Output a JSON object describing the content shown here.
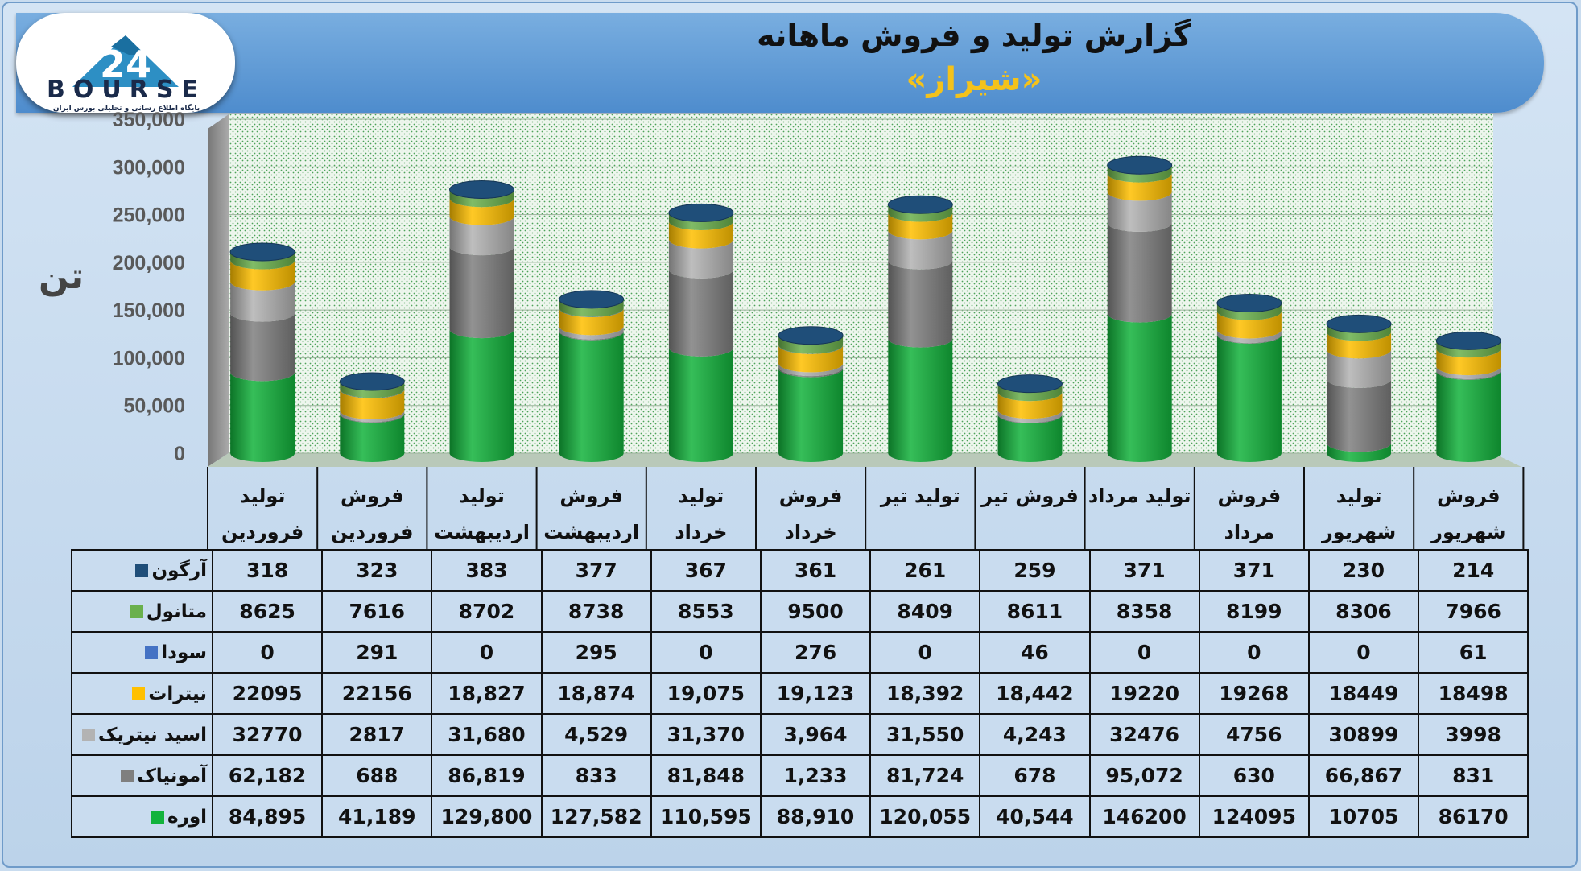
{
  "header": {
    "title": "گزارش تولید و فروش ماهانه",
    "subtitle": "«شیراز»"
  },
  "logo": {
    "text": "BOURSE",
    "mark": "24",
    "tagline": "پایگاه اطلاع رسانی و تحلیلی بورس ایران"
  },
  "axis": {
    "unit_label": "تن"
  },
  "colors": {
    "اوره": "#12b33c",
    "آمونیاک": "#7f7f7f",
    "اسید نیتریک": "#b3b3b3",
    "نیترات": "#ffc000",
    "سودا": "#4472c4",
    "متانول": "#6ab04c",
    "آرگون": "#1f4e79"
  },
  "chart_data": {
    "type": "bar",
    "stacked": true,
    "title": "گزارش تولید و فروش ماهانه",
    "subtitle": "«شیراز»",
    "ylabel": "تن",
    "ylim": [
      0,
      350000
    ],
    "yticks": [
      "0",
      "50,000",
      "100,000",
      "150,000",
      "200,000",
      "250,000",
      "300,000",
      "350,000"
    ],
    "grid": true,
    "categories": [
      [
        "تولید",
        "فروردین"
      ],
      [
        "فروش",
        "فروردین"
      ],
      [
        "تولید",
        "اردیبهشت"
      ],
      [
        "فروش",
        "اردیبهشت"
      ],
      [
        "تولید",
        "خرداد"
      ],
      [
        "فروش",
        "خرداد"
      ],
      [
        "تولید تیر",
        ""
      ],
      [
        "فروش تیر",
        ""
      ],
      [
        "تولید مرداد",
        ""
      ],
      [
        "فروش",
        "مرداد"
      ],
      [
        "تولید",
        "شهریور"
      ],
      [
        "فروش",
        "شهریور"
      ]
    ],
    "series": [
      {
        "name": "اوره",
        "values": [
          84895,
          41189,
          129800,
          127582,
          110595,
          88910,
          120055,
          40544,
          146200,
          124095,
          10705,
          86170
        ],
        "labels": [
          "84,895",
          "41,189",
          "129,800",
          "127,582",
          "110,595",
          "88,910",
          "120,055",
          "40,544",
          "146200",
          "124095",
          "10705",
          "86170"
        ]
      },
      {
        "name": "آمونیاک",
        "values": [
          62182,
          688,
          86819,
          833,
          81848,
          1233,
          81724,
          678,
          95072,
          630,
          66867,
          831
        ],
        "labels": [
          "62,182",
          "688",
          "86,819",
          "833",
          "81,848",
          "1,233",
          "81,724",
          "678",
          "95,072",
          "630",
          "66,867",
          "831"
        ]
      },
      {
        "name": "اسید نیتریک",
        "values": [
          32770,
          2817,
          31680,
          4529,
          31370,
          3964,
          31550,
          4243,
          32476,
          4756,
          30899,
          3998
        ],
        "labels": [
          "32770",
          "2817",
          "31,680",
          "4,529",
          "31,370",
          "3,964",
          "31,550",
          "4,243",
          "32476",
          "4756",
          "30899",
          "3998"
        ]
      },
      {
        "name": "نیترات",
        "values": [
          22095,
          22156,
          18827,
          18874,
          19075,
          19123,
          18392,
          18442,
          19220,
          19268,
          18449,
          18498
        ],
        "labels": [
          "22095",
          "22156",
          "18,827",
          "18,874",
          "19,075",
          "19,123",
          "18,392",
          "18,442",
          "19220",
          "19268",
          "18449",
          "18498"
        ]
      },
      {
        "name": "سودا",
        "values": [
          0,
          291,
          0,
          295,
          0,
          276,
          0,
          46,
          0,
          0,
          0,
          61
        ],
        "labels": [
          "0",
          "291",
          "0",
          "295",
          "0",
          "276",
          "0",
          "46",
          "0",
          "0",
          "0",
          "61"
        ]
      },
      {
        "name": "متانول",
        "values": [
          8625,
          7616,
          8702,
          8738,
          8553,
          9500,
          8409,
          8611,
          8358,
          8199,
          8306,
          7966
        ],
        "labels": [
          "8625",
          "7616",
          "8702",
          "8738",
          "8553",
          "9500",
          "8409",
          "8611",
          "8358",
          "8199",
          "8306",
          "7966"
        ]
      },
      {
        "name": "آرگون",
        "values": [
          318,
          323,
          383,
          377,
          367,
          361,
          261,
          259,
          371,
          371,
          230,
          214
        ],
        "labels": [
          "318",
          "323",
          "383",
          "377",
          "367",
          "361",
          "261",
          "259",
          "371",
          "371",
          "230",
          "214"
        ]
      }
    ]
  }
}
